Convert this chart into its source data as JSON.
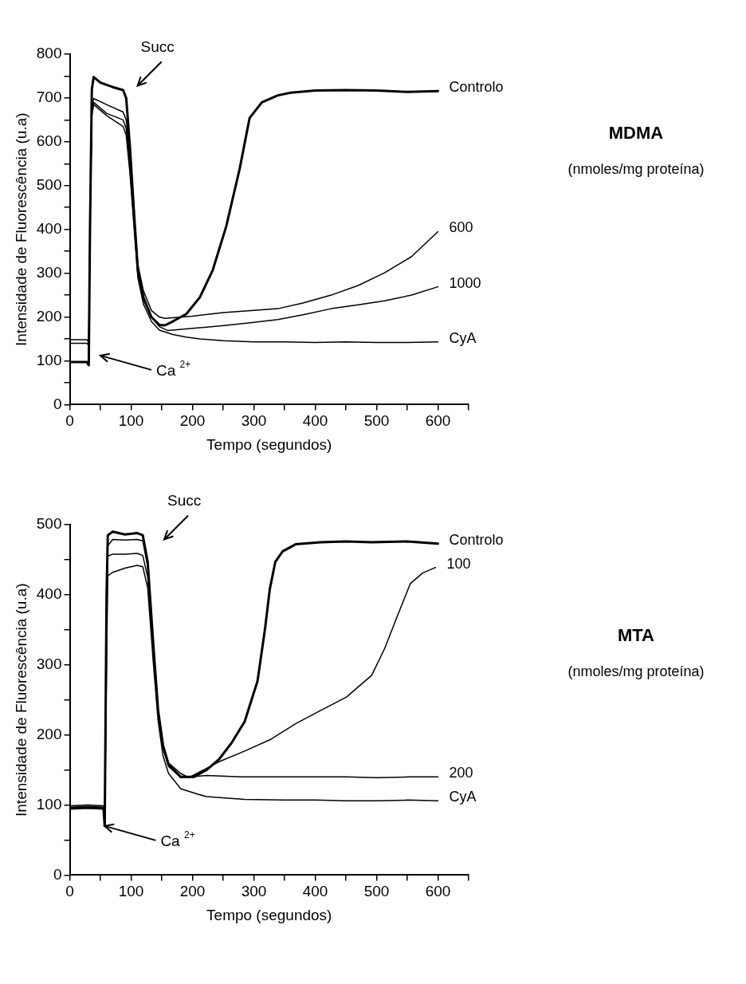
{
  "chart_data": [
    {
      "type": "line",
      "xlabel": "Tempo (segundos)",
      "ylabel": "Intensidade de Fluorescência (u.a)",
      "xlim": [
        0,
        650
      ],
      "ylim": [
        0,
        800
      ],
      "xticks": [
        0,
        {
          "value": 50,
          "label": null
        },
        100,
        {
          "value": 150,
          "label": null
        },
        200,
        {
          "value": 250,
          "label": null
        },
        300,
        {
          "value": 350,
          "label": null
        },
        400,
        {
          "value": 450,
          "label": null
        },
        500,
        {
          "value": 550,
          "label": null
        },
        600,
        {
          "value": 650,
          "label": null
        }
      ],
      "yticks": [
        0,
        {
          "value": 50,
          "label": null
        },
        100,
        {
          "value": 150,
          "label": null
        },
        200,
        {
          "value": 250,
          "label": null
        },
        300,
        {
          "value": 350,
          "label": null
        },
        400,
        {
          "value": 450,
          "label": null
        },
        500,
        {
          "value": 550,
          "label": null
        },
        600,
        {
          "value": 650,
          "label": null
        },
        700,
        {
          "value": 750,
          "label": null
        },
        800
      ],
      "grid": false,
      "legend": false,
      "marker": "none",
      "line_style": "solid",
      "annotations": [
        "Succ",
        "Ca $^{2+}$",
        "MDMA",
        "(nmoles/mg proteína)"
      ],
      "series": [
        {
          "name": "Controlo",
          "color": "#000000",
          "x": [
            0,
            28,
            31,
            33,
            36,
            39,
            50,
            70,
            87,
            92,
            98,
            105,
            111,
            120,
            133,
            146,
            155,
            168,
            190,
            212,
            233,
            255,
            277,
            293,
            313,
            339,
            360,
            400,
            450,
            500,
            550,
            600
          ],
          "values": [
            97,
            97,
            90,
            400,
            720,
            748,
            735,
            725,
            718,
            700,
            590,
            433,
            307,
            245,
            200,
            182,
            181,
            190,
            207,
            245,
            307,
            407,
            539,
            654,
            690,
            706,
            712,
            717,
            718,
            717,
            714,
            716
          ]
        },
        {
          "name": "600",
          "color": "#000000",
          "x": [
            0,
            28,
            31,
            33,
            36,
            39,
            60,
            87,
            92,
            98,
            105,
            111,
            120,
            133,
            146,
            155,
            200,
            250,
            300,
            339,
            380,
            426,
            470,
            513,
            557,
            600
          ],
          "values": [
            97,
            97,
            92,
            400,
            680,
            699,
            685,
            668,
            650,
            560,
            430,
            320,
            260,
            215,
            200,
            197,
            202,
            210,
            215,
            219,
            232,
            250,
            272,
            301,
            338,
            395
          ]
        },
        {
          "name": "1000",
          "color": "#000000",
          "x": [
            0,
            28,
            31,
            33,
            36,
            39,
            60,
            87,
            92,
            98,
            105,
            111,
            120,
            133,
            146,
            160,
            200,
            255,
            300,
            339,
            380,
            426,
            470,
            513,
            557,
            600
          ],
          "values": [
            140,
            140,
            135,
            400,
            670,
            690,
            665,
            650,
            630,
            540,
            410,
            300,
            240,
            200,
            178,
            169,
            174,
            181,
            188,
            194,
            205,
            219,
            228,
            237,
            250,
            269
          ]
        },
        {
          "name": "CyA",
          "color": "#000000",
          "x": [
            0,
            28,
            31,
            33,
            36,
            39,
            60,
            87,
            92,
            98,
            105,
            111,
            120,
            133,
            146,
            168,
            190,
            212,
            250,
            300,
            350,
            400,
            450,
            500,
            550,
            600
          ],
          "values": [
            148,
            148,
            142,
            400,
            660,
            685,
            660,
            635,
            615,
            530,
            400,
            290,
            230,
            190,
            170,
            160,
            154,
            150,
            146,
            143,
            143,
            142,
            143,
            142,
            142,
            143
          ]
        }
      ]
    },
    {
      "type": "line",
      "xlabel": "Tempo (segundos)",
      "ylabel": "Intensidade de Fluorescência (u.a)",
      "xlim": [
        0,
        650
      ],
      "ylim": [
        0,
        500
      ],
      "xticks": [
        0,
        {
          "value": 50,
          "label": null
        },
        100,
        {
          "value": 150,
          "label": null
        },
        200,
        {
          "value": 250,
          "label": null
        },
        300,
        {
          "value": 350,
          "label": null
        },
        400,
        {
          "value": 450,
          "label": null
        },
        500,
        {
          "value": 550,
          "label": null
        },
        600,
        {
          "value": 650,
          "label": null
        }
      ],
      "yticks": [
        0,
        {
          "value": 50,
          "label": null
        },
        100,
        {
          "value": 150,
          "label": null
        },
        200,
        {
          "value": 250,
          "label": null
        },
        300,
        {
          "value": 350,
          "label": null
        },
        400,
        {
          "value": 450,
          "label": null
        },
        500
      ],
      "grid": false,
      "legend": false,
      "marker": "none",
      "line_style": "solid",
      "annotations": [
        "Succ",
        {
          "text": "Ca $^{2+}$",
          "x": 57,
          "y": 70
        },
        "MTA",
        "(nmoles/mg proteína)"
      ],
      "series": [
        {
          "name": "Controlo",
          "color": "#000000",
          "x": [
            0,
            30,
            55,
            57,
            60,
            62,
            70,
            90,
            110,
            119,
            127,
            136,
            144,
            152,
            161,
            181,
            202,
            223,
            244,
            264,
            285,
            306,
            318,
            326,
            335,
            347,
            368,
            409,
            450,
            492,
            550,
            600
          ],
          "values": [
            95,
            96,
            95,
            70,
            400,
            485,
            490,
            486,
            488,
            485,
            447,
            331,
            235,
            185,
            158,
            140,
            140,
            150,
            166,
            189,
            219,
            277,
            350,
            408,
            447,
            462,
            472,
            475,
            476,
            475,
            476,
            473
          ]
        },
        {
          "name": "100",
          "color": "#000000",
          "x": [
            0,
            30,
            55,
            57,
            60,
            62,
            70,
            90,
            110,
            119,
            127,
            136,
            144,
            152,
            161,
            181,
            194,
            244,
            285,
            326,
            368,
            409,
            451,
            492,
            513,
            534,
            555,
            575,
            596
          ],
          "values": [
            97,
            98,
            97,
            72,
            380,
            470,
            479,
            478,
            479,
            477,
            440,
            330,
            236,
            186,
            160,
            145,
            139,
            162,
            177,
            193,
            216,
            235,
            254,
            285,
            323,
            370,
            416,
            431,
            439
          ]
        },
        {
          "name": "200",
          "color": "#000000",
          "x": [
            0,
            30,
            55,
            57,
            60,
            62,
            70,
            90,
            110,
            119,
            127,
            136,
            144,
            152,
            161,
            181,
            223,
            280,
            350,
            400,
            450,
            500,
            550,
            600
          ],
          "values": [
            99,
            100,
            99,
            74,
            380,
            455,
            458,
            458,
            459,
            456,
            425,
            320,
            230,
            180,
            155,
            139,
            142,
            140,
            140,
            140,
            140,
            139,
            140,
            140
          ]
        },
        {
          "name": "CyA",
          "color": "#000000",
          "x": [
            0,
            30,
            55,
            57,
            60,
            62,
            70,
            90,
            110,
            119,
            127,
            136,
            144,
            152,
            161,
            181,
            210,
            223,
            285,
            350,
            400,
            450,
            500,
            550,
            600
          ],
          "values": [
            96,
            96,
            96,
            70,
            300,
            427,
            432,
            438,
            442,
            440,
            410,
            305,
            220,
            170,
            145,
            123,
            115,
            112,
            108,
            107,
            107,
            106,
            106,
            107,
            106
          ]
        }
      ]
    }
  ]
}
